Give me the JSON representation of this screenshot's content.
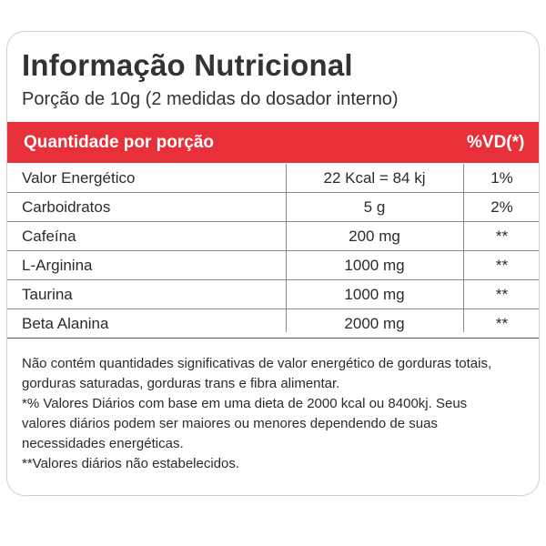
{
  "title": "Informação Nutricional",
  "subtitle": "Porção de 10g (2 medidas do dosador interno)",
  "header": {
    "quantity_label": "Quantidade por porção",
    "vd_label": "%VD(*)"
  },
  "colors": {
    "accent": "#e8303a",
    "border": "#cfcfcf"
  },
  "rows": [
    {
      "name": "Valor Energético",
      "amount": "22 Kcal = 84 kj",
      "vd": "1%"
    },
    {
      "name": "Carboidratos",
      "amount": "5 g",
      "vd": "2%"
    },
    {
      "name": "Cafeína",
      "amount": "200 mg",
      "vd": "**"
    },
    {
      "name": "L-Arginina",
      "amount": "1000 mg",
      "vd": "**"
    },
    {
      "name": "Taurina",
      "amount": "1000 mg",
      "vd": "**"
    },
    {
      "name": "Beta Alanina",
      "amount": "2000 mg",
      "vd": "**"
    }
  ],
  "footnotes": [
    "Não contém quantidades significativas de valor energético de gorduras totais,",
    "gorduras saturadas, gorduras trans e fibra alimentar.",
    "*% Valores Diários com base em uma dieta de 2000 kcal ou 8400kj. Seus",
    "valores diários podem ser maiores ou menores dependendo de suas",
    "necessidades energéticas.",
    "**Valores diários não estabelecidos."
  ]
}
